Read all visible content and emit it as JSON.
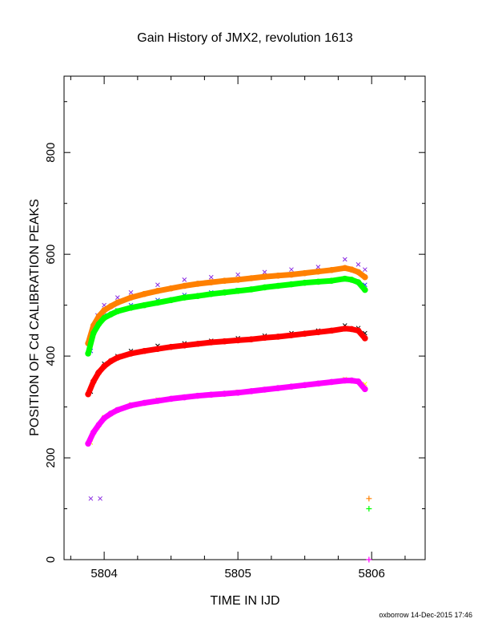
{
  "chart_data": {
    "type": "scatter",
    "title": "Gain History of JMX2, revolution 1613",
    "xlabel": "TIME IN IJD",
    "ylabel": "POSITION OF Cd CALIBRATION PEAKS",
    "xlim": [
      5803.7,
      5806.4
    ],
    "ylim": [
      0,
      950
    ],
    "xticks": [
      5804,
      5805,
      5806
    ],
    "yticks": [
      0,
      200,
      400,
      600,
      800
    ],
    "grid": false,
    "footer": "oxborrow 14-Dec-2015 17:46",
    "series": [
      {
        "color": "#8a2be2",
        "marker": "x",
        "x": [
          5803.9,
          5803.95,
          5804.0,
          5804.1,
          5804.2,
          5804.4,
          5804.6,
          5804.8,
          5805.0,
          5805.2,
          5805.4,
          5805.6,
          5805.8,
          5805.9,
          5805.95
        ],
        "y": [
          440,
          480,
          500,
          515,
          525,
          540,
          550,
          555,
          560,
          565,
          570,
          575,
          590,
          580,
          570
        ]
      },
      {
        "color": "#1e3cff",
        "marker": "x",
        "x": [
          5803.9,
          5803.95,
          5804.0,
          5804.1,
          5804.2,
          5804.4,
          5804.6,
          5804.8,
          5805.0,
          5805.2,
          5805.4,
          5805.6,
          5805.8,
          5805.9,
          5805.95
        ],
        "y": [
          410,
          470,
          480,
          490,
          500,
          510,
          520,
          525,
          530,
          535,
          540,
          545,
          550,
          545,
          540
        ]
      },
      {
        "color": "#000000",
        "marker": "x",
        "x": [
          5803.9,
          5803.95,
          5804.0,
          5804.1,
          5804.2,
          5804.4,
          5804.6,
          5804.8,
          5805.0,
          5805.2,
          5805.4,
          5805.6,
          5805.8,
          5805.9,
          5805.95
        ],
        "y": [
          330,
          365,
          385,
          400,
          410,
          420,
          425,
          430,
          435,
          440,
          445,
          450,
          460,
          455,
          445
        ]
      },
      {
        "color": "#ffff00",
        "marker": "x",
        "x": [
          5803.9,
          5803.95,
          5804.0,
          5804.1,
          5804.2,
          5804.4,
          5804.6,
          5804.8,
          5805.0,
          5805.2,
          5805.4,
          5805.6,
          5805.8,
          5805.9,
          5805.95
        ],
        "y": [
          230,
          260,
          280,
          295,
          305,
          315,
          320,
          325,
          330,
          335,
          340,
          345,
          355,
          350,
          345
        ]
      },
      {
        "color": "#ff8000",
        "marker": "dot",
        "x": [
          5803.88,
          5803.92,
          5803.96,
          5804.0,
          5804.05,
          5804.1,
          5804.2,
          5804.3,
          5804.4,
          5804.5,
          5804.6,
          5804.7,
          5804.8,
          5804.9,
          5805.0,
          5805.1,
          5805.2,
          5805.3,
          5805.4,
          5805.5,
          5805.6,
          5805.7,
          5805.8,
          5805.85,
          5805.9,
          5805.95
        ],
        "y": [
          425,
          460,
          478,
          490,
          498,
          505,
          515,
          522,
          528,
          533,
          538,
          542,
          545,
          548,
          550,
          553,
          556,
          558,
          560,
          563,
          566,
          569,
          573,
          570,
          565,
          555
        ]
      },
      {
        "color": "#00ff00",
        "marker": "dot",
        "x": [
          5803.88,
          5803.92,
          5803.96,
          5804.0,
          5804.05,
          5804.1,
          5804.2,
          5804.3,
          5804.4,
          5804.5,
          5804.6,
          5804.7,
          5804.8,
          5804.9,
          5805.0,
          5805.1,
          5805.2,
          5805.3,
          5805.4,
          5805.5,
          5805.6,
          5805.7,
          5805.8,
          5805.85,
          5805.9,
          5805.95
        ],
        "y": [
          405,
          445,
          463,
          475,
          482,
          488,
          495,
          500,
          505,
          510,
          515,
          518,
          522,
          525,
          528,
          531,
          535,
          538,
          541,
          544,
          546,
          548,
          552,
          550,
          545,
          530
        ]
      },
      {
        "color": "#ff0000",
        "marker": "dot",
        "x": [
          5803.88,
          5803.92,
          5803.96,
          5804.0,
          5804.05,
          5804.1,
          5804.2,
          5804.3,
          5804.4,
          5804.5,
          5804.6,
          5804.7,
          5804.8,
          5804.9,
          5805.0,
          5805.1,
          5805.2,
          5805.3,
          5805.4,
          5805.5,
          5805.6,
          5805.7,
          5805.8,
          5805.85,
          5805.9,
          5805.95
        ],
        "y": [
          325,
          350,
          368,
          380,
          390,
          397,
          405,
          410,
          414,
          418,
          421,
          424,
          427,
          429,
          431,
          433,
          436,
          438,
          441,
          444,
          447,
          450,
          454,
          453,
          450,
          435
        ]
      },
      {
        "color": "#ff00ff",
        "marker": "dot",
        "x": [
          5803.88,
          5803.92,
          5803.96,
          5804.0,
          5804.05,
          5804.1,
          5804.2,
          5804.3,
          5804.4,
          5804.5,
          5804.6,
          5804.7,
          5804.8,
          5804.9,
          5805.0,
          5805.1,
          5805.2,
          5805.3,
          5805.4,
          5805.5,
          5805.6,
          5805.7,
          5805.8,
          5805.85,
          5805.9,
          5805.95
        ],
        "y": [
          228,
          250,
          265,
          278,
          287,
          294,
          303,
          308,
          312,
          316,
          319,
          322,
          324,
          326,
          328,
          331,
          334,
          337,
          340,
          343,
          346,
          349,
          352,
          352,
          350,
          335
        ]
      }
    ],
    "outliers": [
      {
        "color": "#8a2be2",
        "marker": "x",
        "x": 5803.9,
        "y": 120
      },
      {
        "color": "#8a2be2",
        "marker": "x",
        "x": 5803.97,
        "y": 120
      },
      {
        "color": "#ff8000",
        "marker": "+",
        "x": 5805.98,
        "y": 120
      },
      {
        "color": "#00ff00",
        "marker": "+",
        "x": 5805.98,
        "y": 100
      },
      {
        "color": "#ff00ff",
        "marker": "+",
        "x": 5805.98,
        "y": 0
      }
    ]
  }
}
